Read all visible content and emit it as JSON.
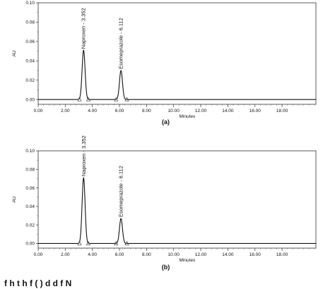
{
  "chart_data": [
    {
      "type": "line",
      "panel_label": "(a)",
      "xlabel": "Minutes",
      "ylabel": "AU",
      "xlim": [
        0,
        20.5
      ],
      "ylim": [
        -0.005,
        0.1
      ],
      "xticks": [
        "0.00",
        "2.00",
        "4.00",
        "6.00",
        "8.00",
        "10.00",
        "12.00",
        "14.00",
        "16.00",
        "18.00"
      ],
      "yticks": [
        "0.00",
        "0.02",
        "0.04",
        "0.06",
        "0.08",
        "0.10"
      ],
      "peaks": [
        {
          "label": "Naproxen - 3.352",
          "rt": 3.352,
          "height": 0.051,
          "start": 3.05,
          "end": 3.7
        },
        {
          "label": "Esomeprazole - 6.112",
          "rt": 6.112,
          "height": 0.03,
          "start": 5.75,
          "end": 6.55
        }
      ]
    },
    {
      "type": "line",
      "panel_label": "(b)",
      "xlabel": "Minutes",
      "ylabel": "AU",
      "xlim": [
        0,
        20.5
      ],
      "ylim": [
        -0.005,
        0.1
      ],
      "xticks": [
        "0.00",
        "2.00",
        "4.00",
        "6.00",
        "8.00",
        "10.00",
        "12.00",
        "14.00",
        "16.00",
        "18.00"
      ],
      "yticks": [
        "0.00",
        "0.02",
        "0.04",
        "0.06",
        "0.08",
        "0.10"
      ],
      "peaks": [
        {
          "label": "Naproxen - 3.352",
          "rt": 3.352,
          "height": 0.071,
          "start": 3.05,
          "end": 3.7
        },
        {
          "label": "Esomeprazole - 6.112",
          "rt": 6.112,
          "height": 0.027,
          "start": 5.75,
          "end": 6.55
        }
      ]
    }
  ],
  "caption": "f  h t    h       f ( )     d d f  N"
}
